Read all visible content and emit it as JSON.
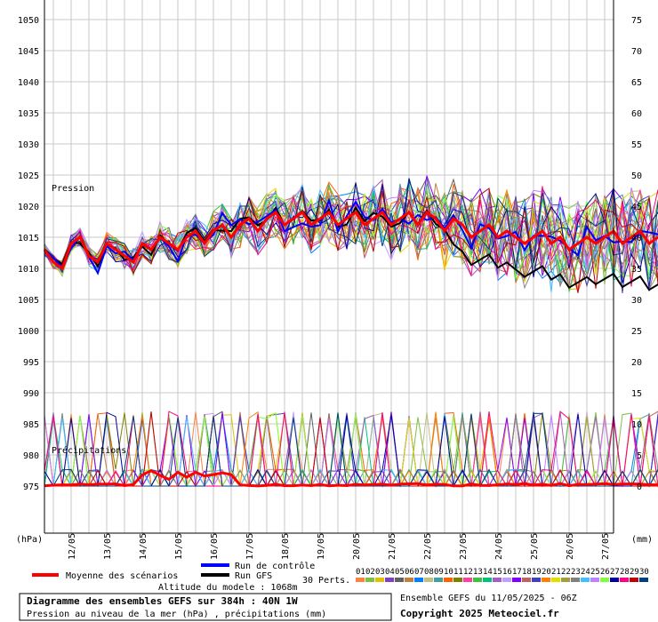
{
  "chart_data": {
    "type": "line",
    "title": "Diagramme des ensembles GEFS sur 384h : 40N 1W",
    "subtitle": "Pression au niveau de la mer (hPa) , précipitations (mm)",
    "altitude": "Altitude du modele : 1068m",
    "run_info": "Ensemble GEFS du 11/05/2025 - 06Z",
    "copyright": "Copyright 2025 Meteociel.fr",
    "left_unit": "(hPa)",
    "right_unit": "(mm)",
    "pressure_label": "Pression",
    "precip_label": "Précipitations",
    "left_ticks": [
      1050,
      1045,
      1040,
      1035,
      1030,
      1025,
      1020,
      1015,
      1010,
      1005,
      1000,
      995,
      990,
      985,
      980,
      975
    ],
    "right_ticks": [
      75,
      70,
      65,
      60,
      55,
      50,
      45,
      40,
      35,
      30,
      25,
      20,
      15,
      10,
      5,
      0
    ],
    "x_ticks": [
      "12/05",
      "13/05",
      "14/05",
      "15/05",
      "16/05",
      "17/05",
      "18/05",
      "19/05",
      "20/05",
      "21/05",
      "22/05",
      "23/05",
      "24/05",
      "25/05",
      "26/05",
      "27/05"
    ],
    "left_range": [
      975,
      1050
    ],
    "right_range": [
      0,
      75
    ],
    "x_range_days": [
      11.25,
      27.25
    ],
    "legend": {
      "mean": "Moyenne des scénarios",
      "control": "Run de contrôle",
      "gfs": "Run GFS",
      "perts": "30 Perts.",
      "pert_labels": [
        "01",
        "02",
        "03",
        "04",
        "05",
        "06",
        "07",
        "08",
        "09",
        "10",
        "11",
        "12",
        "13",
        "14",
        "15",
        "16",
        "17",
        "18",
        "19",
        "20",
        "21",
        "22",
        "23",
        "24",
        "25",
        "26",
        "27",
        "28",
        "29",
        "30"
      ]
    },
    "colors": {
      "mean": "#ff0000",
      "control": "#0000ff",
      "gfs": "#000000",
      "perts": [
        "#ff8040",
        "#80c040",
        "#e0c000",
        "#8040c0",
        "#606060",
        "#c08040",
        "#0080ff",
        "#c0c080",
        "#40a0a0",
        "#ff6000",
        "#808000",
        "#ff40a0",
        "#40c040",
        "#00c080",
        "#a060c0",
        "#c0a0ff",
        "#8000ff",
        "#c06060",
        "#4040c0",
        "#ff8000",
        "#e0e000",
        "#a0a040",
        "#808080",
        "#40c0ff",
        "#c080ff",
        "#80ff40",
        "#0000a0",
        "#ff0080",
        "#c00000",
        "#004080"
      ]
    },
    "mean_pressure": [
      1013,
      1011,
      1010,
      1014,
      1015,
      1012,
      1011,
      1014,
      1013,
      1012,
      1011,
      1014,
      1013,
      1015,
      1014,
      1013,
      1015,
      1016,
      1014,
      1016,
      1017,
      1015,
      1017,
      1018,
      1016,
      1018,
      1019,
      1017,
      1018,
      1019,
      1017,
      1018,
      1019,
      1017,
      1018,
      1019,
      1017,
      1018,
      1019,
      1017,
      1018,
      1019,
      1017,
      1019,
      1018,
      1016,
      1018,
      1017,
      1015,
      1016,
      1017,
      1015,
      1016,
      1015,
      1014,
      1015,
      1016,
      1014,
      1015,
      1013,
      1014,
      1015,
      1014,
      1015,
      1016,
      1014,
      1015,
      1016,
      1014,
      1015,
      1015
    ]
  }
}
